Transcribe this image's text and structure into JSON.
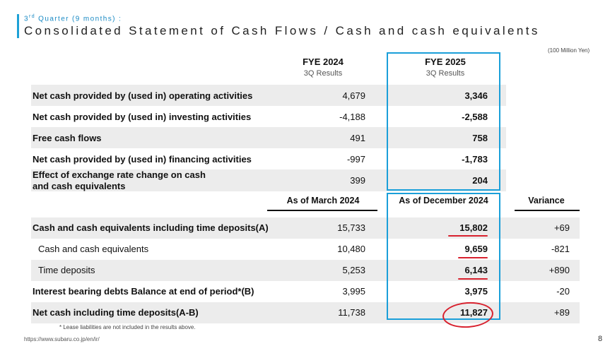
{
  "header": {
    "quarter_label_prefix": "3",
    "quarter_label_sup": "rd",
    "quarter_label_rest": " Quarter (9 months)  :",
    "title": "Consolidated Statement of Cash Flows / Cash and cash equivalents",
    "unit": "(100 Million Yen)"
  },
  "flows": {
    "col1_title": "FYE 2024",
    "col1_sub": "3Q Results",
    "col2_title": "FYE 2025",
    "col2_sub": "3Q Results",
    "rows": [
      {
        "label": "Net cash provided by (used in) operating activities",
        "v1": "4,679",
        "v2": "3,346"
      },
      {
        "label": "Net cash provided by (used in) investing activities",
        "v1": "-4,188",
        "v2": "-2,588"
      },
      {
        "label": "Free cash flows",
        "v1": "491",
        "v2": "758"
      },
      {
        "label": "Net cash provided by (used in) financing activities",
        "v1": "-997",
        "v2": "-1,783"
      },
      {
        "label_line1": "Effect of exchange rate change on cash",
        "label_line2": "and cash equivalents",
        "v1": "399",
        "v2": "204"
      }
    ]
  },
  "balance": {
    "col1_title": "As of March 2024",
    "col2_title": "As of December 2024",
    "col3_title": "Variance",
    "rows": [
      {
        "label": "Cash and cash equivalents including time deposits(A)",
        "v1": "15,733",
        "v2": "15,802",
        "v3": "+69"
      },
      {
        "label": "Cash and cash equivalents",
        "v1": "10,480",
        "v2": "9,659",
        "v3": "-821"
      },
      {
        "label": "Time deposits",
        "v1": "5,253",
        "v2": "6,143",
        "v3": "+890"
      },
      {
        "label": "Interest bearing debts Balance at end of period*(B)",
        "v1": "3,995",
        "v2": "3,975",
        "v3": "-20"
      },
      {
        "label": "Net cash including time deposits(A-B)",
        "v1": "11,738",
        "v2": "11,827",
        "v3": "+89"
      }
    ]
  },
  "footer": {
    "note": "* Lease liabilities are not included in the results above.",
    "url": "https://www.subaru.co.jp/en/ir/",
    "page_number": "8"
  },
  "colors": {
    "accent_blue": "#1a9fd9",
    "annotation_red": "#d8212e",
    "row_shade": "#ececec"
  }
}
